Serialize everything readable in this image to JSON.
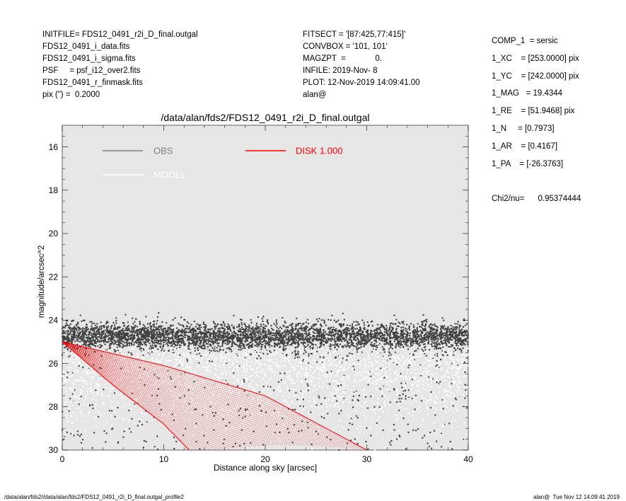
{
  "header": {
    "left": [
      "INITFILE= FDS12_0491_r2i_D_final.outgal",
      "FDS12_0491_i_data.fits",
      "FDS12_0491_i_sigma.fits",
      "PSF     = psf_i12_over2.fits",
      "FDS12_0491_r_finmask.fits",
      "pix (\") =  0.2000"
    ],
    "middle": [
      "FITSECT = '[87:425,77:415]'",
      "CONVBOX = '101, 101'",
      "MAGZPT  =             0.",
      "INFILE: 2019-Nov- 8",
      "PLOT: 12-Nov-2019 14:09:41.00",
      "alan@"
    ]
  },
  "params": [
    "COMP_1  = sersic",
    "1_XC    = [253.0000] pix",
    "1_YC    = [242.0000] pix",
    "1_MAG   = 19.4344",
    "1_RE    = [51.9468] pix",
    "1_N     = [0.7973]",
    "1_AR    = [0.4167]",
    "1_PA    = [-26.3763]"
  ],
  "chi2": "Chi2/nu=      0.95374444",
  "footer": {
    "left": "/data/alan/fds2//data/alan/fds2/FDS12_0491_r2i_D_final.outgal_profile2",
    "right": "alan@  Tue Nov 12 14:09:41 2019"
  },
  "chart_data": {
    "type": "scatter",
    "title": "/data/alan/fds2/FDS12_0491_r2i_D_final.outgal",
    "xlabel": "Distance along sky [arcsec]",
    "ylabel": "magnitude/arcsec^2",
    "xlim": [
      0,
      40
    ],
    "ylim": [
      15,
      30
    ],
    "y_inverted": true,
    "xticks": [
      0,
      10,
      20,
      30,
      40
    ],
    "yticks": [
      16,
      18,
      20,
      22,
      24,
      26,
      28,
      30
    ],
    "background": "#e6e6e6",
    "legend": [
      {
        "name": "OBS",
        "color": "#808080"
      },
      {
        "name": "MODEL",
        "color": "#ffffff"
      },
      {
        "name": "DISK  1.000",
        "color": "#ff0000"
      }
    ],
    "series": [
      {
        "name": "OBS",
        "color": "#404040",
        "description": "dense band of points between ~24 and ~25.5 mag across 0-40 arcsec, sparse scatter down to 30"
      },
      {
        "name": "MODEL",
        "color": "#ffffff",
        "description": "white points spread between ~25 and 30 mag"
      },
      {
        "name": "DISK  1.000",
        "color": "#ff0000",
        "envelope": {
          "start": [
            0,
            25.0
          ],
          "upper_edge": [
            [
              0,
              25.0
            ],
            [
              10,
              26.1
            ],
            [
              20,
              27.5
            ],
            [
              30,
              30.0
            ]
          ],
          "lower_edge": [
            [
              0,
              25.0
            ],
            [
              5,
              27.0
            ],
            [
              10,
              28.8
            ],
            [
              12.5,
              30.0
            ]
          ]
        }
      }
    ]
  }
}
